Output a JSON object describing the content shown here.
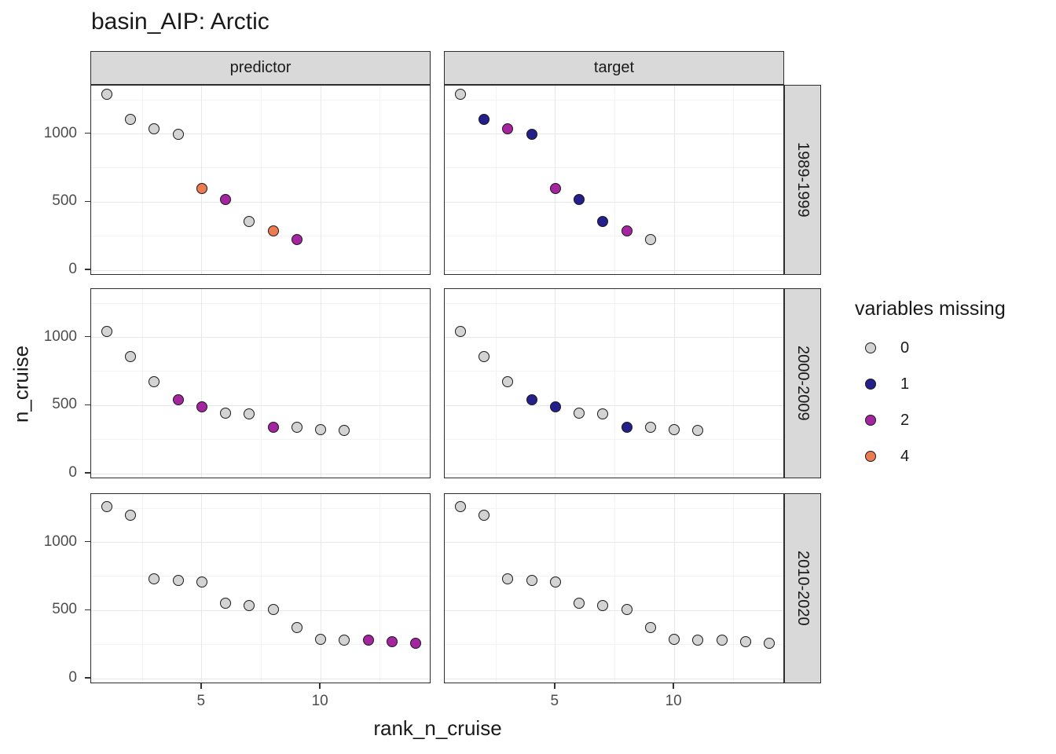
{
  "chart_data": {
    "type": "scatter",
    "title": "basin_AIP: Arctic",
    "xlabel": "rank_n_cruise",
    "ylabel": "n_cruise",
    "facet_columns": [
      "predictor",
      "target"
    ],
    "facet_rows": [
      "1989-1999",
      "2000-2009",
      "2010-2020"
    ],
    "x_ticks": [
      "5",
      "10"
    ],
    "x_tick_values": [
      5,
      10
    ],
    "y_ticks": [
      "0",
      "500",
      "1000"
    ],
    "y_tick_values": [
      0,
      500,
      1000
    ],
    "x_minor_gridlines": [
      2.5,
      7.5,
      12.5
    ],
    "y_minor_gridlines": [
      250,
      750,
      1250
    ],
    "xlim": [
      0.35,
      14.65
    ],
    "ylim": [
      -40,
      1355
    ],
    "grid": true,
    "legend": {
      "title": "variables missing",
      "position": "right",
      "entries": [
        {
          "label": "0",
          "color": "#D3D3D3"
        },
        {
          "label": "1",
          "color": "#23208C"
        },
        {
          "label": "2",
          "color": "#A524A0"
        },
        {
          "label": "4",
          "color": "#EC7B52"
        }
      ]
    },
    "colors": {
      "0": "#D3D3D3",
      "1": "#23208C",
      "2": "#A524A0",
      "4": "#EC7B52"
    },
    "point_stroke": "#1A1A1A",
    "panel_bg": "#FFFFFF",
    "strip_bg": "#D9D9D9",
    "gridline_color": "#E7E7E7",
    "tick_label_color": "#4D4D4D",
    "rows": [
      {
        "facet_row": "1989-1999",
        "x": [
          1,
          2,
          3,
          4,
          5,
          6,
          7,
          8,
          9
        ],
        "n_cruise": [
          1290,
          1105,
          1040,
          1000,
          600,
          520,
          355,
          290,
          225
        ],
        "predictor_missing": [
          0,
          0,
          0,
          0,
          4,
          2,
          0,
          4,
          2
        ],
        "target_missing": [
          0,
          1,
          2,
          1,
          2,
          1,
          1,
          2,
          0
        ]
      },
      {
        "facet_row": "2000-2009",
        "x": [
          1,
          2,
          3,
          4,
          5,
          6,
          7,
          8,
          9,
          10,
          11
        ],
        "n_cruise": [
          1045,
          860,
          675,
          540,
          490,
          445,
          440,
          340,
          340,
          325,
          320
        ],
        "predictor_missing": [
          0,
          0,
          0,
          2,
          2,
          0,
          0,
          2,
          0,
          0,
          0
        ],
        "target_missing": [
          0,
          0,
          0,
          1,
          1,
          0,
          0,
          1,
          0,
          0,
          0
        ]
      },
      {
        "facet_row": "2010-2020",
        "x": [
          1,
          2,
          3,
          4,
          5,
          6,
          7,
          8,
          9,
          10,
          11,
          12,
          13,
          14
        ],
        "n_cruise": [
          1260,
          1200,
          730,
          720,
          710,
          555,
          535,
          505,
          375,
          290,
          285,
          280,
          270,
          260
        ],
        "predictor_missing": [
          0,
          0,
          0,
          0,
          0,
          0,
          0,
          0,
          0,
          0,
          0,
          2,
          2,
          2
        ],
        "target_missing": [
          0,
          0,
          0,
          0,
          0,
          0,
          0,
          0,
          0,
          0,
          0,
          0,
          0,
          0
        ]
      }
    ]
  }
}
